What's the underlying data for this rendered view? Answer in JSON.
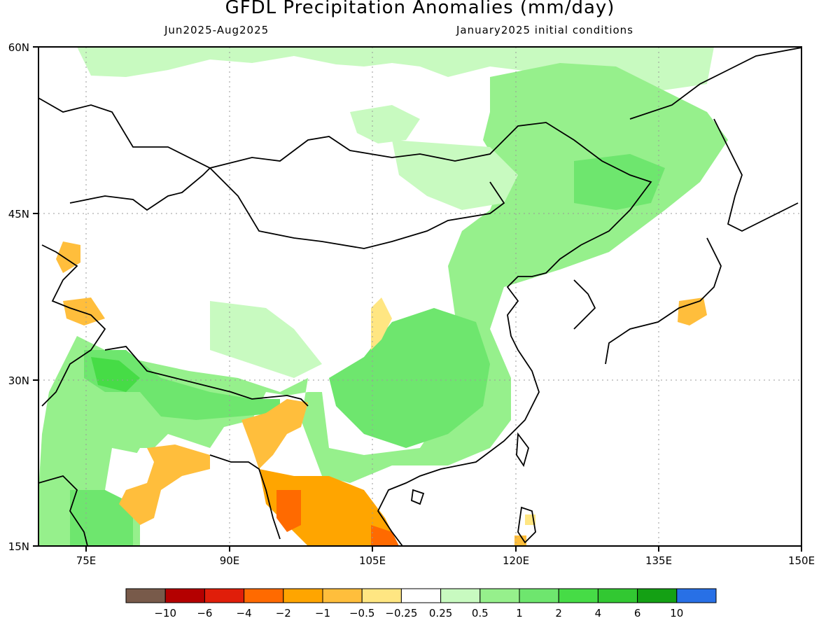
{
  "title": "GFDL Precipitation Anomalies (mm/day)",
  "period": "Jun2025-Aug2025",
  "init": "January2025 initial conditions",
  "lat_labels": [
    "60N",
    "45N",
    "30N",
    "15N"
  ],
  "lon_labels": [
    "75E",
    "90E",
    "105E",
    "120E",
    "135E",
    "150E"
  ],
  "colorbar": {
    "colors": [
      "#785a4a",
      "#b40000",
      "#e01e0a",
      "#ff6a00",
      "#ffa500",
      "#ffbe3c",
      "#ffe682",
      "#ffffff",
      "#c8fac0",
      "#96f08c",
      "#6ee66e",
      "#46dc46",
      "#32c832",
      "#14a014",
      "#2870e6"
    ],
    "labels": [
      "−10",
      "−6",
      "−4",
      "−2",
      "−1",
      "−0.5",
      "−0.25",
      "0.25",
      "0.5",
      "1",
      "2",
      "4",
      "6",
      "10"
    ]
  },
  "map_data": {
    "extent": {
      "lon": [
        70,
        150
      ],
      "lat": [
        15,
        60
      ]
    },
    "regions": [
      {
        "name": "north-lightgreen",
        "color": "#c8fac0"
      },
      {
        "name": "northeast-green",
        "color": "#96f08c"
      },
      {
        "name": "china-green",
        "color": "#96f08c"
      },
      {
        "name": "china-mid-green",
        "color": "#6ee66e"
      },
      {
        "name": "himalaya-green",
        "color": "#6ee66e"
      },
      {
        "name": "india-green",
        "color": "#96f08c"
      },
      {
        "name": "indochina-orange",
        "color": "#ffa500"
      },
      {
        "name": "myanmar-dark-orange",
        "color": "#ff6a00"
      },
      {
        "name": "india-yellow",
        "color": "#ffbe3c"
      },
      {
        "name": "japan-yellow",
        "color": "#ffbe3c"
      }
    ]
  }
}
